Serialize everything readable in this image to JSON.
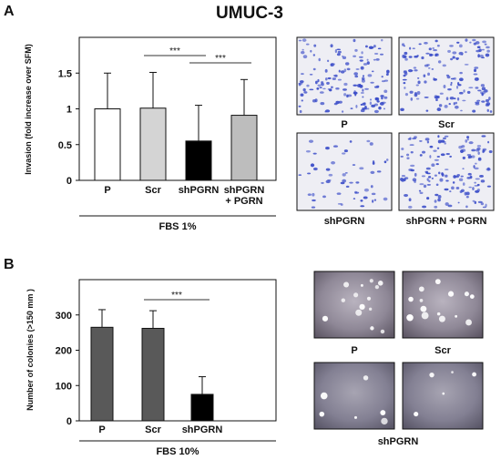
{
  "figure_title": "UMUC-3",
  "chart_data": [
    {
      "panel": "A",
      "type": "bar",
      "ylabel": "Invasion (fold increase over SFM)",
      "ylim": [
        0,
        2
      ],
      "yticks": [
        "0",
        "0.5",
        "1",
        "1.5"
      ],
      "categories": [
        "P",
        "Scr",
        "shPGRN",
        "shPGRN\n+ PGRN"
      ],
      "category_lines": [
        [
          "P"
        ],
        [
          "Scr"
        ],
        [
          "shPGRN"
        ],
        [
          "shPGRN",
          "+ PGRN"
        ]
      ],
      "values": [
        1.0,
        1.01,
        0.55,
        0.91
      ],
      "errors": [
        0.5,
        0.5,
        0.5,
        0.5
      ],
      "bar_colors": [
        "#ffffff",
        "#d4d4d4",
        "#000000",
        "#bdbdbd"
      ],
      "significance": [
        {
          "from": 1,
          "to": 2,
          "label": "***"
        },
        {
          "from": 2,
          "to": 3,
          "label": "***"
        }
      ],
      "group_label": "FBS 1%",
      "grid": false
    },
    {
      "panel": "B",
      "type": "bar",
      "ylabel": "Number of colonies (>150 mm )",
      "ylim": [
        0,
        400
      ],
      "yticks": [
        "0",
        "100",
        "200",
        "300"
      ],
      "categories": [
        "P",
        "Scr",
        "shPGRN"
      ],
      "category_lines": [
        [
          "P"
        ],
        [
          "Scr"
        ],
        [
          "shPGRN"
        ]
      ],
      "values": [
        265,
        262,
        75
      ],
      "errors": [
        50,
        50,
        50
      ],
      "bar_colors": [
        "#595959",
        "#595959",
        "#000000"
      ],
      "significance": [
        {
          "from": 1,
          "to": 2,
          "label": "***"
        }
      ],
      "group_label": "FBS 10%",
      "grid": false
    }
  ],
  "micrographs_a": {
    "labels": [
      "P",
      "Scr",
      "shPGRN",
      "shPGRN + PGRN"
    ],
    "stain_color": "#3a4cc8"
  },
  "micrographs_b": {
    "labels": [
      "P",
      "Scr",
      "shPGRN"
    ],
    "colony_color": "#ffffff"
  }
}
